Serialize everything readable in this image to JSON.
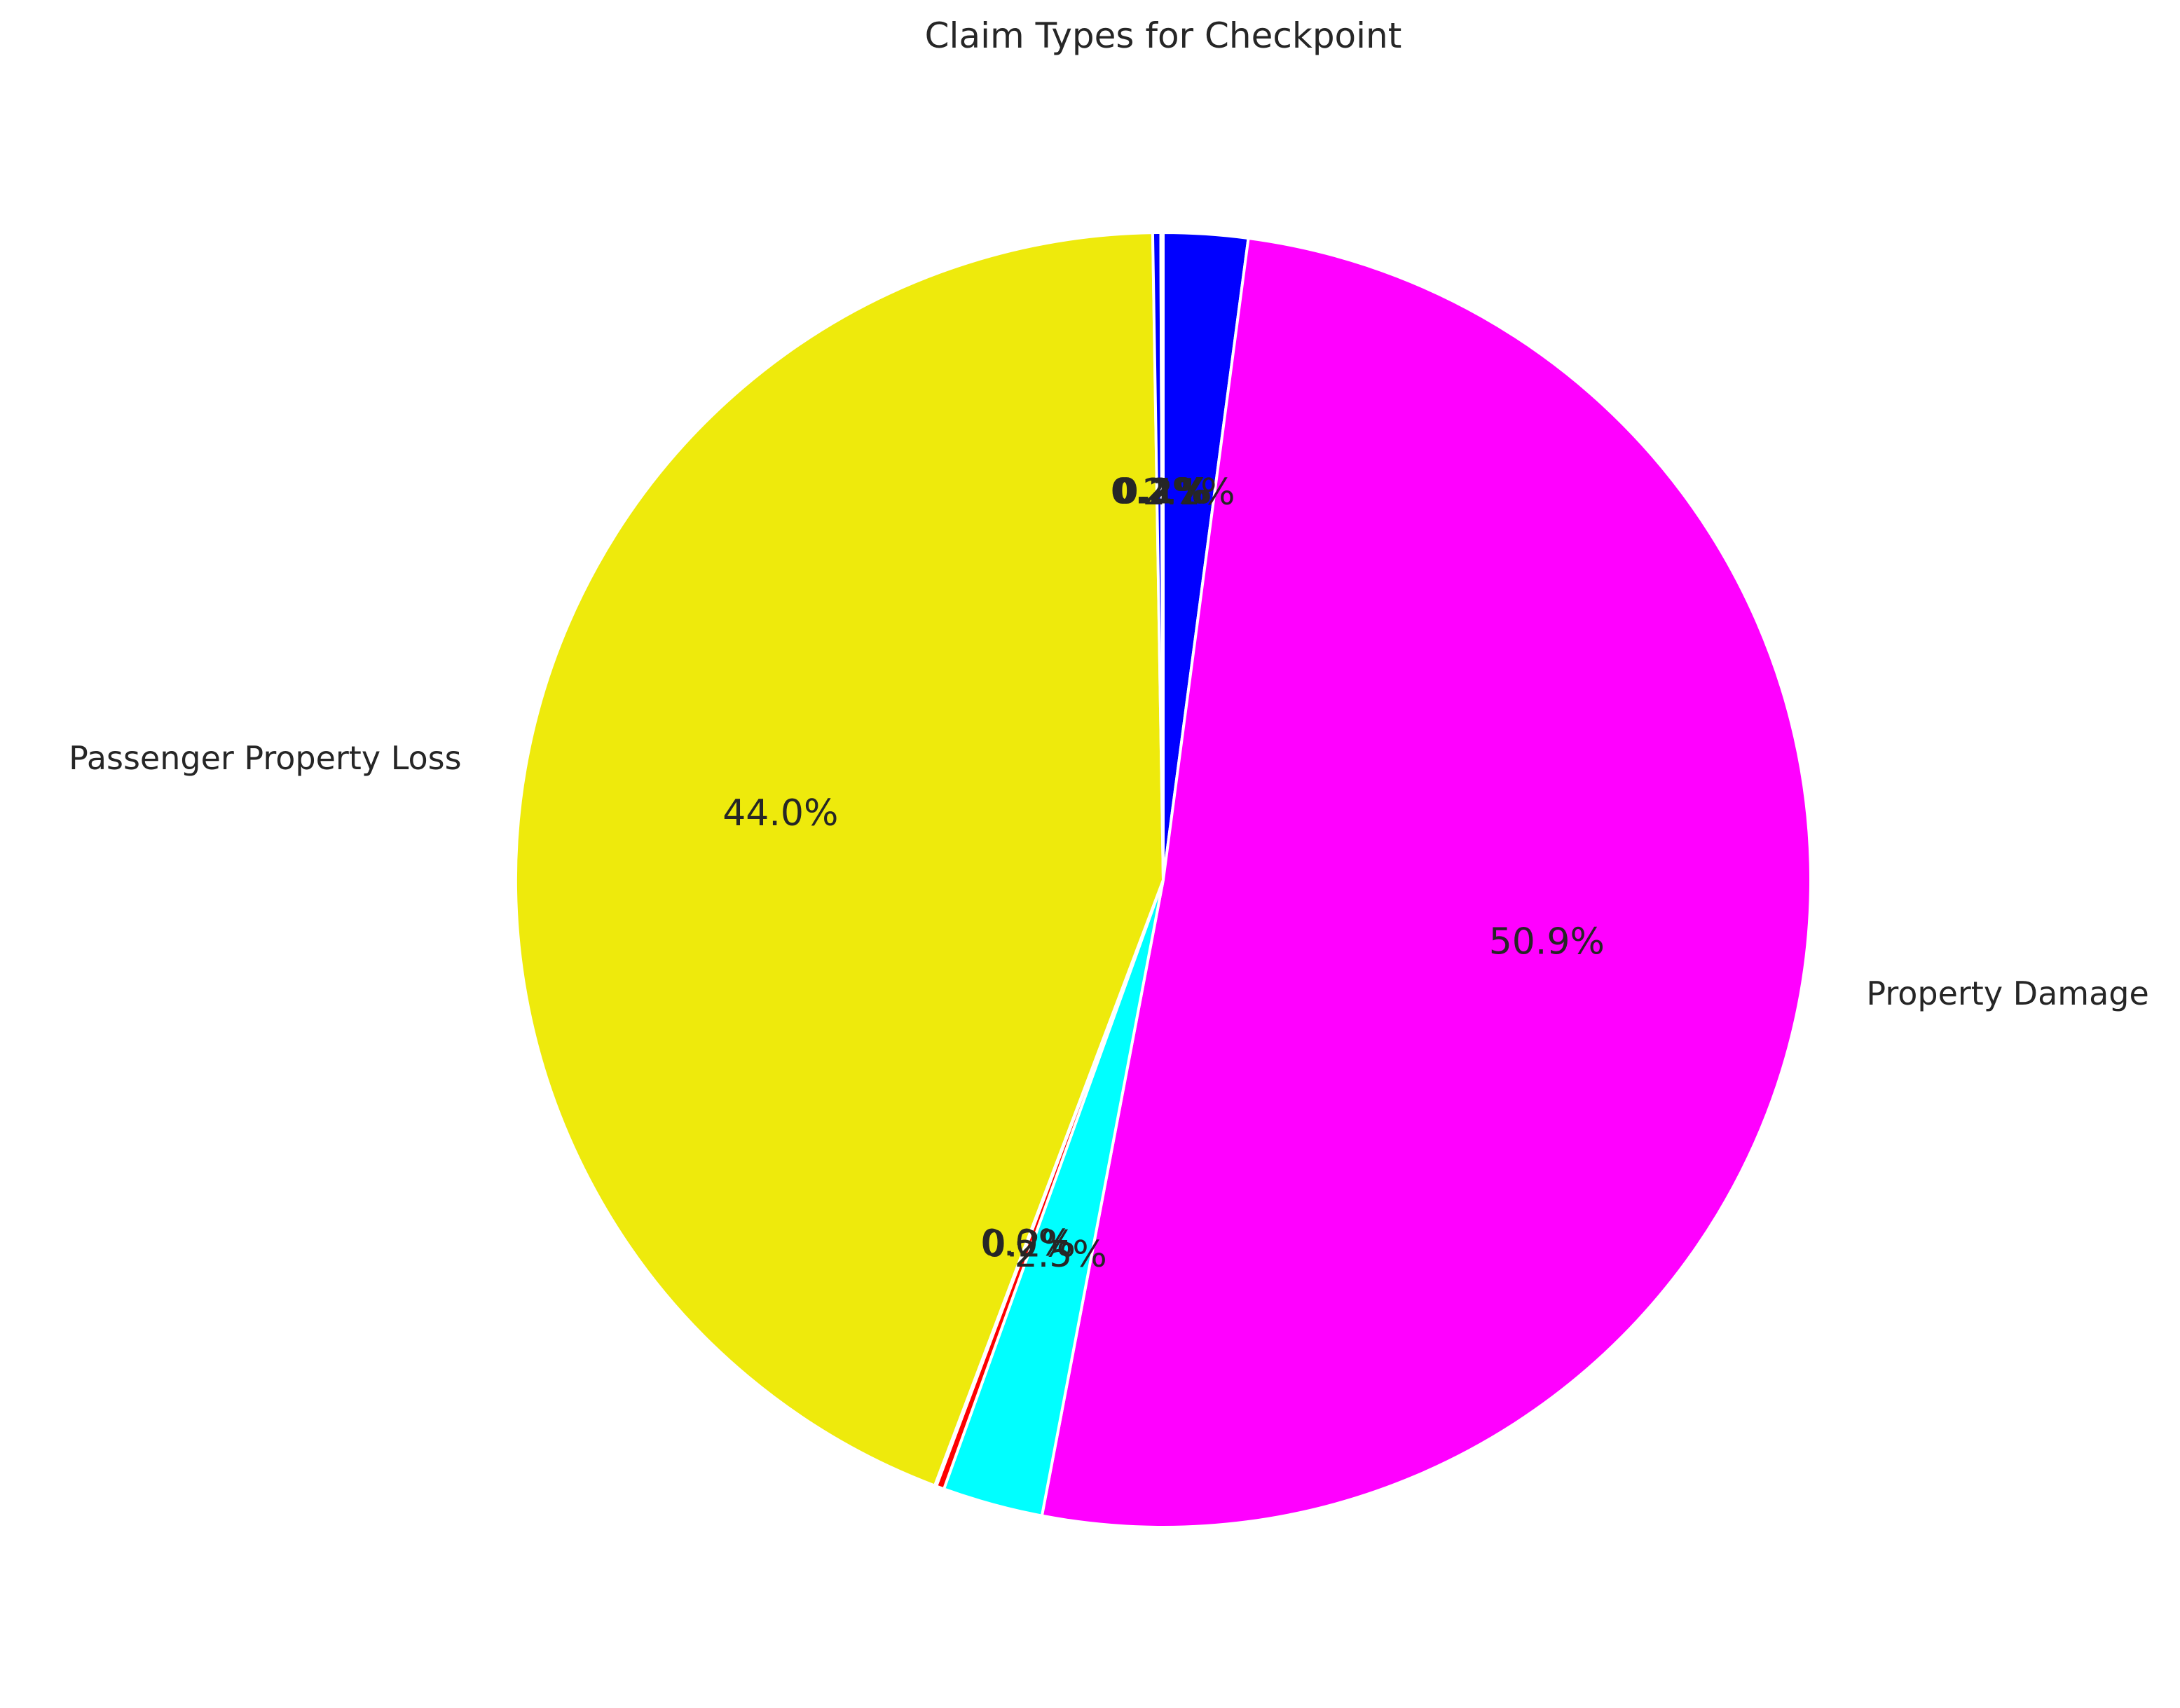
{
  "chart_data": {
    "type": "pie",
    "title": "Claim Types for Checkpoint",
    "start_angle_deg": 90,
    "direction": "clockwise",
    "slices": [
      {
        "label": "",
        "pct_label": "2.1%",
        "value": 2.1,
        "color": "#0000ff"
      },
      {
        "label": "Property Damage",
        "pct_label": "50.9%",
        "value": 50.9,
        "color": "#ff00ff"
      },
      {
        "label": "",
        "pct_label": "2.5%",
        "value": 2.5,
        "color": "#00ffff"
      },
      {
        "label": "",
        "pct_label": "0.2%",
        "value": 0.2,
        "color": "#ff0000"
      },
      {
        "label": "",
        "pct_label": "0.0%",
        "value": 0.04,
        "color": "#ffffff"
      },
      {
        "label": "Passenger Property Loss",
        "pct_label": "44.0%",
        "value": 44.0,
        "color": "#eeea0c"
      },
      {
        "label": "",
        "pct_label": "0.2%",
        "value": 0.2,
        "color": "#0000ff"
      },
      {
        "label": "",
        "pct_label": "0.1%",
        "value": 0.06,
        "color": "#000000"
      }
    ]
  }
}
